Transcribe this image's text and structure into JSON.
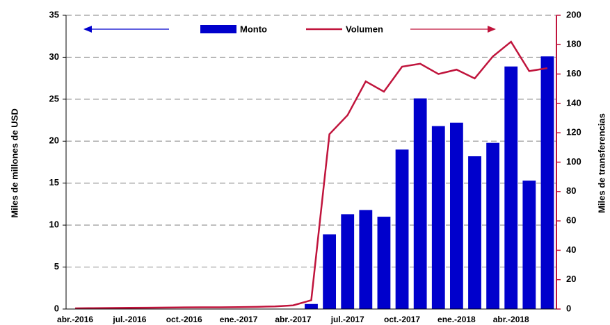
{
  "chart_data": {
    "type": "bar",
    "categories": [
      "abr.-2016",
      null,
      null,
      "jul.-2016",
      null,
      null,
      "oct.-2016",
      null,
      null,
      "ene.-2017",
      null,
      null,
      "abr.-2017",
      null,
      null,
      "jul.-2017",
      null,
      null,
      "oct.-2017",
      null,
      null,
      "ene.-2018",
      null,
      null,
      "abr.-2018",
      null,
      null
    ],
    "series": [
      {
        "name": "Monto",
        "type": "bar",
        "color": "#0000cc",
        "values": [
          0,
          0,
          0,
          0,
          0,
          0,
          0,
          0,
          0,
          0,
          0,
          0,
          0,
          0.6,
          8.9,
          11.3,
          11.8,
          11.0,
          19.0,
          25.1,
          21.8,
          22.2,
          18.2,
          19.8,
          28.9,
          15.3,
          30.1
        ]
      },
      {
        "name": "Volumen",
        "type": "line",
        "axis": "y2",
        "color": "#c0143c",
        "values": [
          0.5,
          0.6,
          0.7,
          0.8,
          0.9,
          1.0,
          1.1,
          1.2,
          1.2,
          1.3,
          1.5,
          1.8,
          2.5,
          6,
          119,
          132,
          155,
          148,
          165,
          167,
          160,
          163,
          157,
          172,
          182,
          162,
          164
        ]
      }
    ],
    "ylabel": "Miles de millones de USD",
    "y2label": "Miles de transferencias",
    "ylim": [
      0,
      35
    ],
    "yticks": [
      0,
      5,
      10,
      15,
      20,
      25,
      30,
      35
    ],
    "y2lim": [
      0,
      200
    ],
    "y2ticks": [
      0,
      20,
      40,
      60,
      80,
      100,
      120,
      140,
      160,
      180,
      200
    ],
    "grid": true,
    "legend": "top"
  }
}
